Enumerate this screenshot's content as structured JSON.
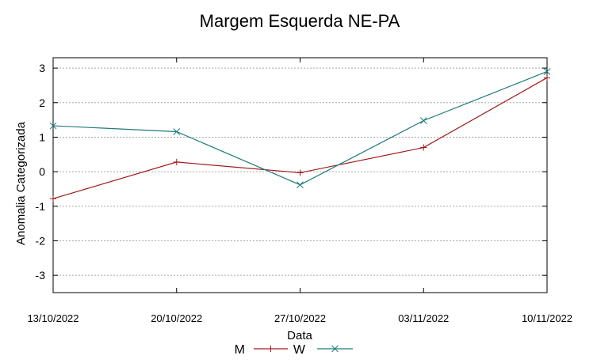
{
  "chart_data": {
    "type": "line",
    "title": "Margem Esquerda NE-PA",
    "xlabel": "Data",
    "ylabel": "Anomalia Categorizada",
    "categories": [
      "13/10/2022",
      "20/10/2022",
      "27/10/2022",
      "03/11/2022",
      "10/11/2022"
    ],
    "ylim": [
      -3.5,
      3.3
    ],
    "yticks": [
      -3,
      -2,
      -1,
      0,
      1,
      2,
      3
    ],
    "grid": true,
    "legend_position": "bottom",
    "series": [
      {
        "name": "M",
        "marker": "plus",
        "color": "#a01a1a",
        "values": [
          -0.78,
          0.28,
          -0.03,
          0.7,
          2.72
        ]
      },
      {
        "name": "W",
        "marker": "x",
        "color": "#1f7a7a",
        "values": [
          1.33,
          1.16,
          -0.38,
          1.48,
          2.9
        ]
      }
    ]
  }
}
